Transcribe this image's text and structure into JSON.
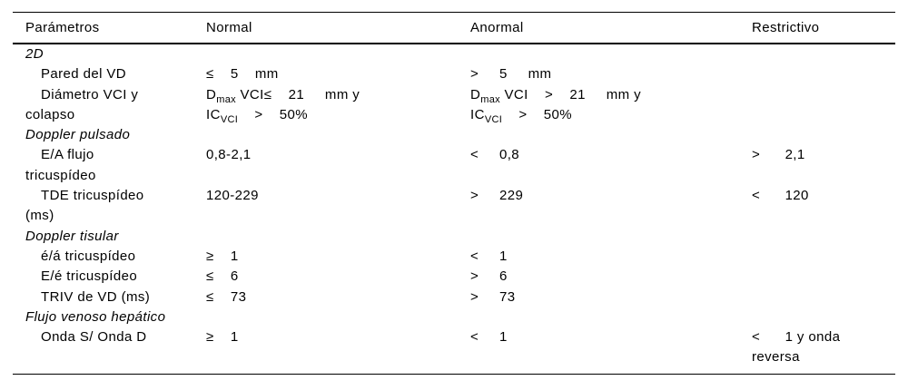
{
  "table": {
    "columns": [
      "Parámetros",
      "Normal",
      "Anormal",
      "Restrictivo"
    ],
    "rows": [
      {
        "type": "section",
        "param": "2D"
      },
      {
        "type": "param",
        "param": "Pared del VD",
        "normal": "≤    5    mm",
        "anormal": ">     5     mm",
        "restrictivo": ""
      },
      {
        "type": "param",
        "param": "Diámetro VCI y\ncolapso",
        "normal": "D~max~ VCI≤    21     mm y\nIC~VCI~    >    50%",
        "anormal": "D~max~ VCI    >    21     mm y\nIC~VCI~    >    50%",
        "restrictivo": ""
      },
      {
        "type": "section",
        "param": "Doppler pulsado"
      },
      {
        "type": "param",
        "param": "E/A flujo\ntricuspídeo",
        "normal": "0,8-2,1",
        "anormal": "<     0,8",
        "restrictivo": ">      2,1"
      },
      {
        "type": "param",
        "param": "TDE tricuspídeo\n(ms)",
        "normal": "120-229",
        "anormal": ">     229",
        "restrictivo": "<      120"
      },
      {
        "type": "section",
        "param": "Doppler tisular"
      },
      {
        "type": "param",
        "param": "é/á tricuspídeo",
        "normal": "≥    1",
        "anormal": "<     1",
        "restrictivo": ""
      },
      {
        "type": "param",
        "param": "E/é tricuspídeo",
        "normal": "≤    6",
        "anormal": ">     6",
        "restrictivo": ""
      },
      {
        "type": "param",
        "param": "TRIV de VD (ms)",
        "normal": "≤    73",
        "anormal": ">     73",
        "restrictivo": ""
      },
      {
        "type": "section",
        "param": "Flujo venoso hepático"
      },
      {
        "type": "param",
        "param": "Onda S/ Onda D",
        "normal": "≥    1",
        "anormal": "<     1",
        "restrictivo": "<      1 y onda\nreversa"
      }
    ]
  }
}
